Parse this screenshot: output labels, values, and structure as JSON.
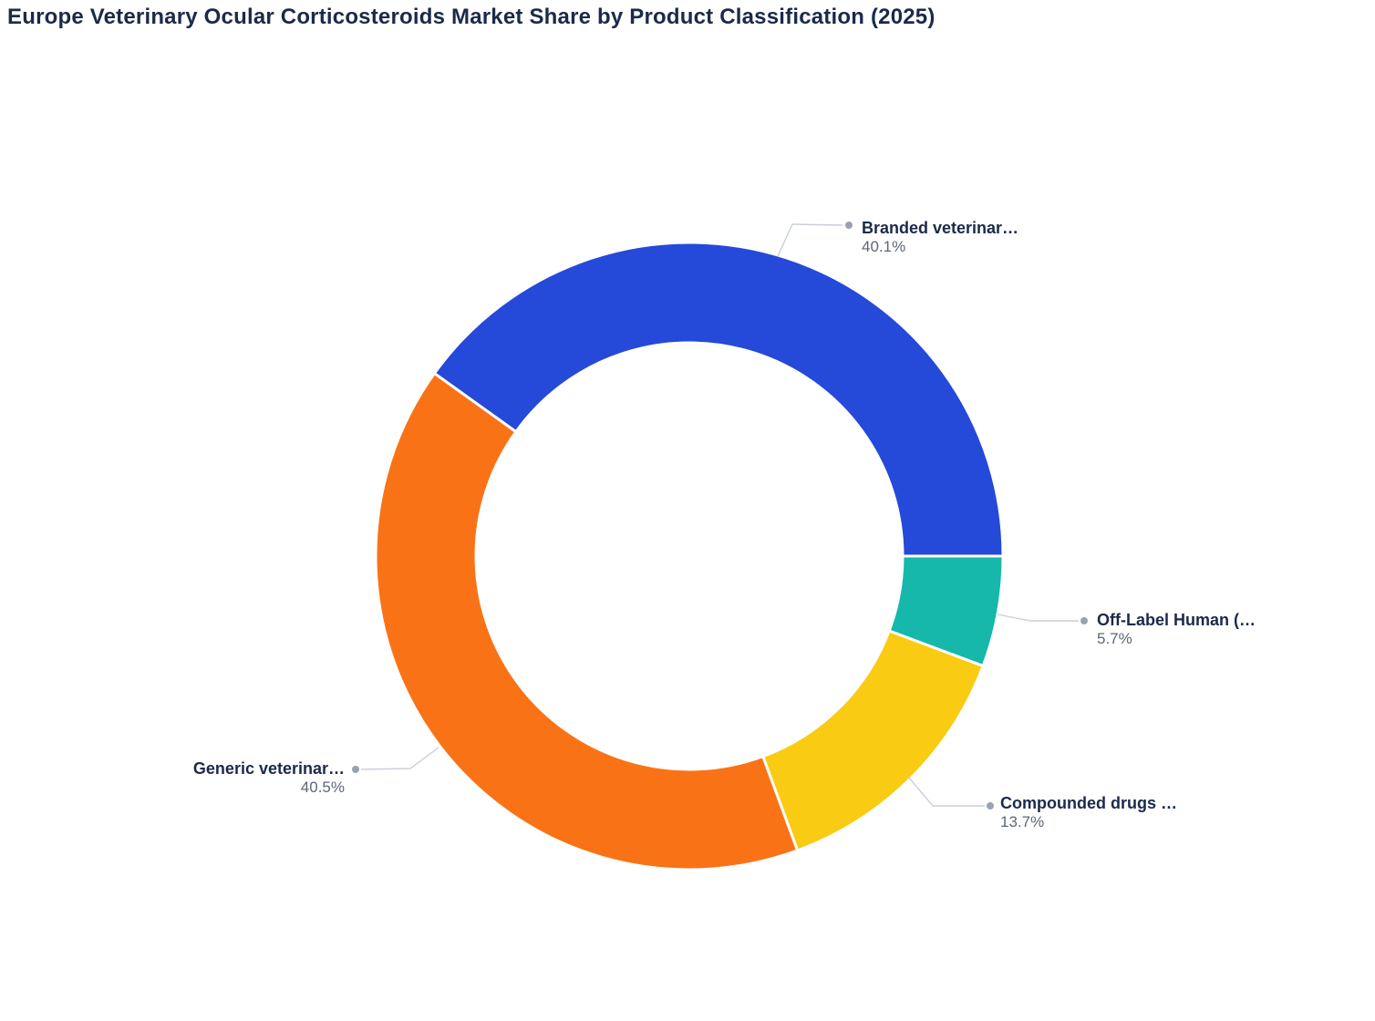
{
  "title": "Europe Veterinary Ocular Corticosteroids Market Share by Product Classification (2025)",
  "chart_data": {
    "type": "pie",
    "subtype": "donut",
    "title": "Europe Veterinary Ocular Corticosteroids Market Share by Product Classification (2025)",
    "unit": "%",
    "legend": "none",
    "rotation_deg": -54.36,
    "inner_radius_ratio": 0.68,
    "slices": [
      {
        "id": "branded",
        "label": "Branded veterinar…",
        "value": 40.1,
        "pct_label": "40.1%",
        "color": "#2549d8"
      },
      {
        "id": "off-label-human",
        "label": "Off-Label Human (…",
        "value": 5.7,
        "pct_label": "5.7%",
        "color": "#15b8aa"
      },
      {
        "id": "compounded",
        "label": "Compounded drugs …",
        "value": 13.7,
        "pct_label": "13.7%",
        "color": "#f9cb12"
      },
      {
        "id": "generic",
        "label": "Generic veterinar…",
        "value": 40.5,
        "pct_label": "40.5%",
        "color": "#f97316"
      }
    ],
    "colors": {
      "title_text": "#1b2a4a",
      "label_name_text": "#1b2a4a",
      "label_pct_text": "#5d6678",
      "leader_line": "#c9cfda",
      "leader_dot": "#99a2b3",
      "slice_separator": "#ffffff"
    }
  }
}
